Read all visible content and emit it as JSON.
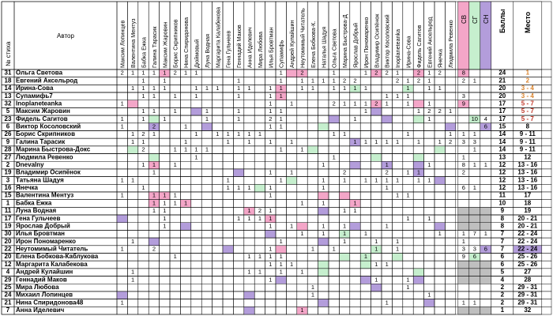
{
  "header": {
    "num_label": "№ стиха",
    "author_label": "Автор",
    "jurors": [
      "Максим Лопинцев",
      "Валентина Ментуз",
      "Бабка Ежка",
      "Галина Тарасик",
      "Максим Жаровин",
      "Борис Скрипников",
      "Нина Спиридонова",
      "Дюймовый",
      "Луна Водная",
      "Маргарита Калабекова",
      "Гена Гульчеев",
      "Геннадий Маков",
      "Анна Иделевич",
      "Мира Любова",
      "Илья Бровтман",
      "Супамифь",
      "Андрей Кулайшин",
      "Неутомимый Читатель",
      "Елена Бобкова-К.",
      "Наталья Шадуя",
      "Ольга Светова",
      "Марина Быстрова-Д",
      "Ярослав Добрый",
      "Ирон Пономаренко",
      "Владимир Осипёнок",
      "Виктор Косоловский",
      "Inoplaneteanka",
      "Ирина-Сова",
      "Фидель Сагитов",
      "Евгений Аксельрод",
      "Янечка",
      "Людмила Ревенко"
    ],
    "cb": "СВ",
    "cg": "СГ",
    "cn": "СН",
    "score": "Баллы",
    "place": "Место"
  },
  "colors": {
    "pink": "#f4a6c8",
    "green": "#c6efce",
    "purple": "#b39ddb",
    "gray": "#bfbfbf",
    "orange_text": "#d9822b",
    "red_text": "#c0392b"
  },
  "rows": [
    {
      "num": "31",
      "author": "Ольга Светова",
      "cells": {
        "0": "2",
        "1": "1",
        "2": "1",
        "3": "1",
        "4": "1",
        "5": "2",
        "6": "1",
        "7": "1",
        "15": "1",
        "17": "2",
        "20": "1",
        "23": "1",
        "24": "2",
        "25": "2",
        "26": "1",
        "28": "2",
        "29": "1",
        "30": "2"
      },
      "fill": {
        "4": "pink",
        "16": "pink",
        "17": "pink",
        "24": "pink",
        "28": "pink"
      },
      "cb": "8",
      "cg": "",
      "cn": "",
      "score": "24",
      "place": "1",
      "place_color": "orange",
      "cb_color": "pink"
    },
    {
      "num": "18",
      "author": "Евгений Аксельрод",
      "cells": {
        "2": "1",
        "4": "1",
        "11": "1",
        "15": "1",
        "17": "1",
        "18": "1",
        "19": "1",
        "20": "1",
        "21": "2",
        "22": "2",
        "26": "2",
        "27": "1",
        "28": "2",
        "29": "1"
      },
      "fill": {},
      "cb": "2",
      "cg": "1",
      "cn": "",
      "score": "21",
      "place": "2",
      "place_color": "orange"
    },
    {
      "num": "14",
      "author": "Ирина-Сова",
      "cells": {
        "1": "1",
        "2": "1",
        "3": "1",
        "4": "1",
        "7": "1",
        "8": "1",
        "9": "1",
        "11": "1",
        "12": "1",
        "14": "1",
        "15": "1",
        "17": "1",
        "18": "1",
        "20": "1",
        "21": "1",
        "22": "1",
        "23": "1",
        "27": "1",
        "29": "1",
        "30": "1"
      },
      "fill": {
        "15": "pink",
        "27": "green",
        "22": "green"
      },
      "cb": "",
      "cg": "",
      "cn": "",
      "score": "20",
      "place": "3 - 4",
      "place_color": "orange"
    },
    {
      "num": "13",
      "author": "Супамифь7",
      "cells": {
        "2": "1",
        "3": "1",
        "5": "1",
        "7": "1",
        "11": "1",
        "14": "1",
        "15": "1",
        "25": "1",
        "26": "1",
        "27": "1"
      },
      "fill": {
        "15": "pink"
      },
      "cb": "3",
      "cg": "",
      "cn": "",
      "score": "20",
      "place": "3 - 4",
      "place_color": "orange"
    },
    {
      "num": "32",
      "author": "Inoplaneteanka",
      "cells": {
        "0": "1",
        "14": "1",
        "16": "1",
        "20": "2",
        "21": "1",
        "22": "1",
        "23": "1",
        "24": "2",
        "25": "1",
        "27": "1",
        "29": "1"
      },
      "fill": {
        "1": "pink",
        "24": "pink",
        "28": "pink"
      },
      "cb": "9",
      "cg": "",
      "cn": "",
      "score": "17",
      "place": "5 - 7",
      "place_color": "red",
      "cb_color": "pink"
    },
    {
      "num": "5",
      "author": "Максим Жаровин",
      "cells": {
        "2": "1",
        "3": "1",
        "5": "1",
        "8": "1",
        "11": "1",
        "14": "1",
        "15": "1",
        "23": "1",
        "28": "1",
        "29": "2",
        "30": "2",
        "31": "1"
      },
      "fill": {
        "7": "purple",
        "24": "purple"
      },
      "cb": "",
      "cg": "",
      "cn": "",
      "score": "17",
      "place": "5 - 7",
      "place_color": "red"
    },
    {
      "num": "23",
      "author": "Фидель Сагитов",
      "cells": {
        "0": "1",
        "2": "1",
        "4": "1",
        "8": "1",
        "11": "1",
        "14": "2",
        "15": "1",
        "22": "1",
        "29": "1"
      },
      "fill": {
        "3": "green",
        "20": "purple",
        "25": "purple",
        "28": "green"
      },
      "cb": "",
      "cg": "10",
      "cn": "4",
      "score": "17",
      "place": "5 - 7",
      "place_color": "red",
      "cg_color": "green"
    },
    {
      "num": "6",
      "author": "Виктор Косоловский",
      "cells": {
        "0": "1",
        "3": "2",
        "6": "1",
        "14": "1",
        "15": "1"
      },
      "fill": {
        "3": "purple",
        "8": "purple",
        "19": "green",
        "31": "purple"
      },
      "cb": "",
      "cg": "",
      "cn": "6",
      "score": "15",
      "place": "8",
      "place_color": "normal",
      "cn_color": "purple"
    },
    {
      "num": "26",
      "author": "Борис Скрипников",
      "cells": {
        "1": "1",
        "2": "2",
        "3": "1",
        "7": "1",
        "9": "1",
        "10": "1",
        "11": "1",
        "12": "1",
        "13": "1",
        "20": "1",
        "21": "1",
        "27": "1",
        "31": "1"
      },
      "fill": {},
      "cb": "1",
      "cg": "1",
      "cn": "",
      "score": "14",
      "place": "9 - 11",
      "place_color": "normal"
    },
    {
      "num": "9",
      "author": "Галина Тарасик",
      "cells": {
        "1": "1",
        "2": "1",
        "6": "1",
        "10": "1",
        "12": "1",
        "14": "1",
        "16": "1",
        "22": "1",
        "23": "1",
        "24": "1",
        "25": "1",
        "26": "1",
        "28": "1",
        "30": "1",
        "31": "2",
        "32": "1"
      },
      "fill": {
        "22": "purple"
      },
      "cb": "3",
      "cg": "3",
      "cn": "",
      "score": "14",
      "place": "9 - 11",
      "place_color": "normal"
    },
    {
      "num": "28",
      "author": "Марина Быстрова-Докс",
      "cells": {
        "2": "2",
        "5": "1",
        "6": "1",
        "7": "1",
        "8": "1",
        "15": "1",
        "17": "1"
      },
      "fill": {
        "1": "green",
        "18": "green",
        "30": "green"
      },
      "cb": "",
      "cg": "1",
      "cn": "",
      "score": "14",
      "place": "9 - 11",
      "place_color": "normal"
    },
    {
      "num": "27",
      "author": "Людмила Ревенко",
      "cells": {
        "7": "1",
        "20": "1"
      },
      "fill": {
        "3": "green",
        "24": "green",
        "28": "green"
      },
      "cb": "1",
      "cg": "",
      "cn": "",
      "score": "13",
      "place": "12",
      "place_color": "normal"
    },
    {
      "num": "2",
      "author": "Dnevalny",
      "cells": {
        "2": "1",
        "3": "1",
        "5": "1",
        "19": "1",
        "25": "1",
        "29": "1"
      },
      "fill": {
        "3": "pink",
        "22": "purple",
        "25": "purple",
        "28": "purple"
      },
      "cb": "8",
      "cg": "1",
      "cn": "1",
      "score": "12",
      "place": "13 - 16",
      "place_color": "normal"
    },
    {
      "num": "19",
      "author": "Владимир Осипёнок",
      "cells": {
        "3": "1",
        "14": "1",
        "16": "1",
        "21": "2",
        "25": "2",
        "27": "1",
        "28": "1"
      },
      "fill": {
        "11": "purple",
        "28": "purple"
      },
      "cb": "2",
      "cg": "",
      "cn": "",
      "score": "12",
      "place": "13 - 16",
      "place_color": "normal"
    },
    {
      "num": "3",
      "author": "Татьяна Шадуя",
      "cells": {
        "0": "1",
        "1": "1",
        "10": "1",
        "15": "1",
        "19": "1",
        "21": "1",
        "23": "1",
        "24": "1",
        "25": "1",
        "26": "1",
        "28": "1",
        "29": "1"
      },
      "fill": {
        "16": "green",
        "30": "purple"
      },
      "cb": "",
      "cg": "",
      "cn": "",
      "score": "12",
      "place": "13 - 16",
      "place_color": "normal"
    },
    {
      "num": "16",
      "author": "Янечка",
      "cells": {
        "2": "1",
        "10": "1",
        "11": "1",
        "12": "1",
        "14": "1",
        "19": "1",
        "25": "1"
      },
      "fill": {
        "13": "green"
      },
      "cb": "6",
      "cg": "1",
      "cn": "",
      "score": "12",
      "place": "13 - 16",
      "place_color": "normal"
    },
    {
      "num": "15",
      "author": "Валентина Ментуз",
      "cells": {
        "0": "1",
        "3": "1",
        "4": "1",
        "5": "1",
        "14": "1",
        "26": "1",
        "27": "1"
      },
      "fill": {
        "3": "pink",
        "4": "pink",
        "19": "pink",
        "21": "pink"
      },
      "cb": "",
      "cg": "",
      "cn": "",
      "score": "11",
      "place": "17",
      "place_color": "normal"
    },
    {
      "num": "1",
      "author": "Бабка Ежка",
      "cells": {
        "3": "1",
        "4": "1",
        "5": "1",
        "6": "1",
        "17": "1",
        "19": "1",
        "22": "1"
      },
      "fill": {
        "3": "pink",
        "6": "pink",
        "22": "pink"
      },
      "cb": "",
      "cg": "",
      "cn": "",
      "score": "10",
      "place": "18",
      "place_color": "normal"
    },
    {
      "num": "11",
      "author": "Луна Водная",
      "cells": {
        "3": "1",
        "4": "1",
        "12": "1",
        "13": "2",
        "14": "1",
        "21": "1",
        "22": "1"
      },
      "fill": {
        "12": "pink",
        "19": "purple"
      },
      "cb": "",
      "cg": "",
      "cn": "",
      "score": "9",
      "place": "19",
      "place_color": "normal",
      "gray": true
    },
    {
      "num": "17",
      "author": "Гена Гульчеев",
      "cells": {
        "4": "1",
        "11": "1",
        "12": "1",
        "13": "1",
        "14": "1",
        "27": "1",
        "29": "1"
      },
      "fill": {
        "0": "purple",
        "14": "pink"
      },
      "cb": "",
      "cg": "",
      "cn": "",
      "score": "8",
      "place": "20 - 21",
      "place_color": "normal",
      "gray": true
    },
    {
      "num": "19",
      "author": "Ярослав Добрый",
      "cells": {
        "4": "1",
        "14": "1",
        "16": "1",
        "19": "1",
        "21": "1",
        "25": "1"
      },
      "fill": {
        "6": "purple",
        "17": "pink",
        "22": "purple",
        "30": "purple"
      },
      "cb": "",
      "cg": "",
      "cn": "",
      "score": "8",
      "place": "20 - 21",
      "place_color": "normal",
      "gray": true
    },
    {
      "num": "30",
      "author": "Илья Бровтман",
      "cells": {
        "17": "1",
        "19": "1",
        "21": "1",
        "23": "1",
        "30": "1"
      },
      "fill": {
        "14": "purple",
        "21": "green"
      },
      "cb": "1",
      "cg": "7",
      "cn": "1",
      "score": "7",
      "place": "22 - 24",
      "place_color": "normal"
    },
    {
      "num": "20",
      "author": "Ирон Пономаренко",
      "cells": {
        "1": "1",
        "15": "1",
        "21": "1",
        "24": "1",
        "26": "1"
      },
      "fill": {
        "3": "purple",
        "19": "purple"
      },
      "cb": "1",
      "cg": "",
      "cn": "",
      "score": "7",
      "place": "22 - 24",
      "place_color": "normal"
    },
    {
      "num": "22",
      "author": "Неутомимый Читатель",
      "cells": {
        "0": "1",
        "3": "2",
        "14": "1",
        "18": "1",
        "20": "1",
        "24": "1",
        "26": "1"
      },
      "fill": {
        "10": "purple",
        "15": "pink",
        "24": "green"
      },
      "cb": "3",
      "cg": "3",
      "cn": "6",
      "score": "7",
      "place": "22 - 24",
      "place_color": "purple",
      "cn_color": "purple"
    },
    {
      "num": "20",
      "author": "Елена Бобкова-Каблукова",
      "cells": {
        "5": "1",
        "12": "1",
        "13": "1",
        "14": "1",
        "15": "1",
        "23": "1"
      },
      "fill": {
        "21": "green",
        "23": "green",
        "26": "green"
      },
      "cb": "9",
      "cg": "6",
      "cn": "",
      "score": "6",
      "place": "25 - 26",
      "place_color": "normal",
      "cg_color": "green"
    },
    {
      "num": "12",
      "author": "Маргарита Калабекова",
      "cells": {
        "14": "1",
        "15": "1",
        "16": "1",
        "24": "1",
        "25": "1"
      },
      "fill": {
        "19": "green",
        "23": "green"
      },
      "cb": "",
      "cg": "",
      "cn": "",
      "score": "6",
      "place": "25 - 26",
      "place_color": "normal",
      "gray": true
    },
    {
      "num": "4",
      "author": "Андрей Кулайшин",
      "cells": {
        "1": "1",
        "12": "1",
        "13": "1",
        "15": "1",
        "17": "1"
      },
      "fill": {
        "19": "green",
        "28": "green"
      },
      "cb": "",
      "cg": "",
      "cn": "",
      "score": "5",
      "place": "27",
      "place_color": "normal",
      "gray": true
    },
    {
      "num": "29",
      "author": "Геннадий Маков",
      "cells": {
        "1": "1",
        "14": "1",
        "24": "1",
        "27": "1"
      },
      "fill": {
        "15": "purple",
        "23": "purple",
        "28": "purple"
      },
      "cb": "",
      "cg": "",
      "cn": "",
      "score": "4",
      "place": "28",
      "place_color": "normal",
      "gray": true
    },
    {
      "num": "25",
      "author": "Мира Любова",
      "cells": {
        "18": "1",
        "27": "1"
      },
      "fill": {
        "24": "purple"
      },
      "cb": "",
      "cg": "",
      "cn": "",
      "score": "2",
      "place": "29 - 31",
      "place_color": "normal"
    },
    {
      "num": "24",
      "author": "Михаил Лопинцев",
      "cells": {
        "18": "1",
        "29": "1"
      },
      "fill": {
        "0": "purple",
        "12": "purple"
      },
      "cb": "",
      "cg": "",
      "cn": "",
      "score": "2",
      "place": "29 - 31",
      "place_color": "normal"
    },
    {
      "num": "21",
      "author": "Нина Спиридонова48",
      "cells": {
        "0": "1",
        "25": "1"
      },
      "fill": {
        "19": "purple",
        "29": "purple"
      },
      "cb": "1",
      "cg": "1",
      "cn": "",
      "score": "2",
      "place": "29 - 31",
      "place_color": "normal"
    },
    {
      "num": "7",
      "author": "Анна Иделевич",
      "cells": {
        "17": "1"
      },
      "fill": {
        "12": "purple",
        "17": "pink"
      },
      "cb": "",
      "cg": "",
      "cn": "",
      "score": "1",
      "place": "32",
      "place_color": "normal",
      "gray": true
    }
  ]
}
